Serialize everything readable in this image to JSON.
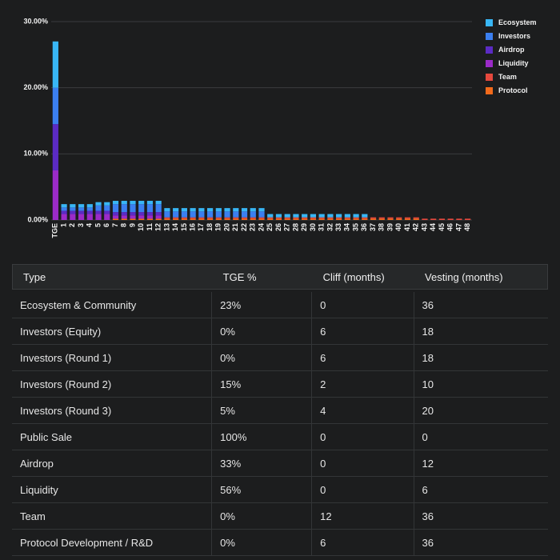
{
  "chart_data": {
    "type": "stacked-bar",
    "categories": [
      "TGE",
      "1",
      "2",
      "3",
      "4",
      "5",
      "6",
      "7",
      "8",
      "9",
      "10",
      "11",
      "12",
      "13",
      "14",
      "15",
      "16",
      "17",
      "18",
      "19",
      "20",
      "21",
      "22",
      "23",
      "24",
      "25",
      "26",
      "27",
      "28",
      "29",
      "30",
      "31",
      "32",
      "33",
      "34",
      "35",
      "36",
      "37",
      "38",
      "39",
      "40",
      "41",
      "42",
      "43",
      "44",
      "45",
      "46",
      "47",
      "48"
    ],
    "series": [
      {
        "name": "Ecosystem",
        "color": "#38b6f5",
        "values": [
          7,
          0.5,
          0.5,
          0.5,
          0.5,
          0.5,
          0.5,
          0.5,
          0.5,
          0.5,
          0.5,
          0.5,
          0.5,
          0.5,
          0.5,
          0.5,
          0.5,
          0.5,
          0.5,
          0.5,
          0.5,
          0.5,
          0.5,
          0.5,
          0.5,
          0.5,
          0.5,
          0.5,
          0.5,
          0.5,
          0.5,
          0.5,
          0.5,
          0.5,
          0.5,
          0.5,
          0.5,
          0,
          0,
          0,
          0,
          0,
          0,
          0,
          0,
          0,
          0,
          0,
          0
        ]
      },
      {
        "name": "Investors",
        "color": "#3b7ff0",
        "values": [
          5.5,
          0.5,
          0.5,
          0.5,
          0.5,
          0.8,
          0.8,
          1.2,
          1.2,
          1.2,
          1.2,
          1.2,
          1.2,
          0.9,
          0.9,
          0.9,
          0.9,
          0.9,
          0.9,
          0.9,
          0.9,
          0.9,
          0.9,
          0.9,
          0.9,
          0,
          0,
          0,
          0,
          0,
          0,
          0,
          0,
          0,
          0,
          0,
          0,
          0,
          0,
          0,
          0,
          0,
          0,
          0,
          0,
          0,
          0,
          0,
          0
        ]
      },
      {
        "name": "Airdrop",
        "color": "#5b2bc4",
        "values": [
          7,
          0.5,
          0.5,
          0.5,
          0.5,
          0.5,
          0.5,
          0.5,
          0.5,
          0.5,
          0.5,
          0.5,
          0.5,
          0,
          0,
          0,
          0,
          0,
          0,
          0,
          0,
          0,
          0,
          0,
          0,
          0,
          0,
          0,
          0,
          0,
          0,
          0,
          0,
          0,
          0,
          0,
          0,
          0,
          0,
          0,
          0,
          0,
          0,
          0,
          0,
          0,
          0,
          0,
          0
        ]
      },
      {
        "name": "Liquidity",
        "color": "#9b2bc8",
        "values": [
          7.5,
          0.9,
          0.9,
          0.9,
          0.9,
          0.9,
          0.9,
          0.5,
          0.5,
          0.5,
          0.5,
          0.5,
          0.5,
          0,
          0,
          0,
          0,
          0,
          0,
          0,
          0,
          0,
          0,
          0,
          0,
          0,
          0,
          0,
          0,
          0,
          0,
          0,
          0,
          0,
          0,
          0,
          0,
          0,
          0,
          0,
          0,
          0,
          0,
          0,
          0,
          0,
          0,
          0,
          0
        ]
      },
      {
        "name": "Team",
        "color": "#e5483d",
        "values": [
          0,
          0,
          0,
          0,
          0,
          0,
          0,
          0,
          0,
          0,
          0,
          0,
          0,
          0.2,
          0.2,
          0.2,
          0.2,
          0.2,
          0.2,
          0.2,
          0.2,
          0.2,
          0.2,
          0.2,
          0.2,
          0.2,
          0.2,
          0.2,
          0.2,
          0.2,
          0.2,
          0.2,
          0.2,
          0.2,
          0.2,
          0.2,
          0.2,
          0.2,
          0.2,
          0.2,
          0.2,
          0.2,
          0.2,
          0.2,
          0.2,
          0.2,
          0.2,
          0.2,
          0.2
        ]
      },
      {
        "name": "Protocol",
        "color": "#f26a1b",
        "values": [
          0,
          0,
          0,
          0,
          0,
          0,
          0,
          0.2,
          0.2,
          0.2,
          0.2,
          0.2,
          0.2,
          0.2,
          0.2,
          0.2,
          0.2,
          0.2,
          0.2,
          0.2,
          0.2,
          0.2,
          0.2,
          0.2,
          0.2,
          0.2,
          0.2,
          0.2,
          0.2,
          0.2,
          0.2,
          0.2,
          0.2,
          0.2,
          0.2,
          0.2,
          0.2,
          0.2,
          0.2,
          0.2,
          0.2,
          0.2,
          0.2,
          0,
          0,
          0,
          0,
          0,
          0
        ]
      }
    ],
    "ylim": [
      0,
      30
    ],
    "yticks": [
      {
        "value": 0,
        "label": "0.00%"
      },
      {
        "value": 10,
        "label": "10.00%"
      },
      {
        "value": 20,
        "label": "20.00%"
      },
      {
        "value": 30,
        "label": "30.00%"
      }
    ],
    "grid": true,
    "legend": "right"
  },
  "table": {
    "header": [
      "Type",
      "TGE %",
      "Cliff (months)",
      "Vesting (months)"
    ],
    "rows": [
      [
        "Ecosystem & Community",
        "23%",
        "0",
        "36"
      ],
      [
        "Investors (Equity)",
        "0%",
        "6",
        "18"
      ],
      [
        "Investors (Round 1)",
        "0%",
        "6",
        "18"
      ],
      [
        "Investors (Round 2)",
        "15%",
        "2",
        "10"
      ],
      [
        "Investors (Round 3)",
        "5%",
        "4",
        "20"
      ],
      [
        "Public Sale",
        "100%",
        "0",
        "0"
      ],
      [
        "Airdrop",
        "33%",
        "0",
        "12"
      ],
      [
        "Liquidity",
        "56%",
        "0",
        "6"
      ],
      [
        "Team",
        "0%",
        "12",
        "36"
      ],
      [
        "Protocol Development / R&D",
        "0%",
        "6",
        "36"
      ]
    ]
  }
}
